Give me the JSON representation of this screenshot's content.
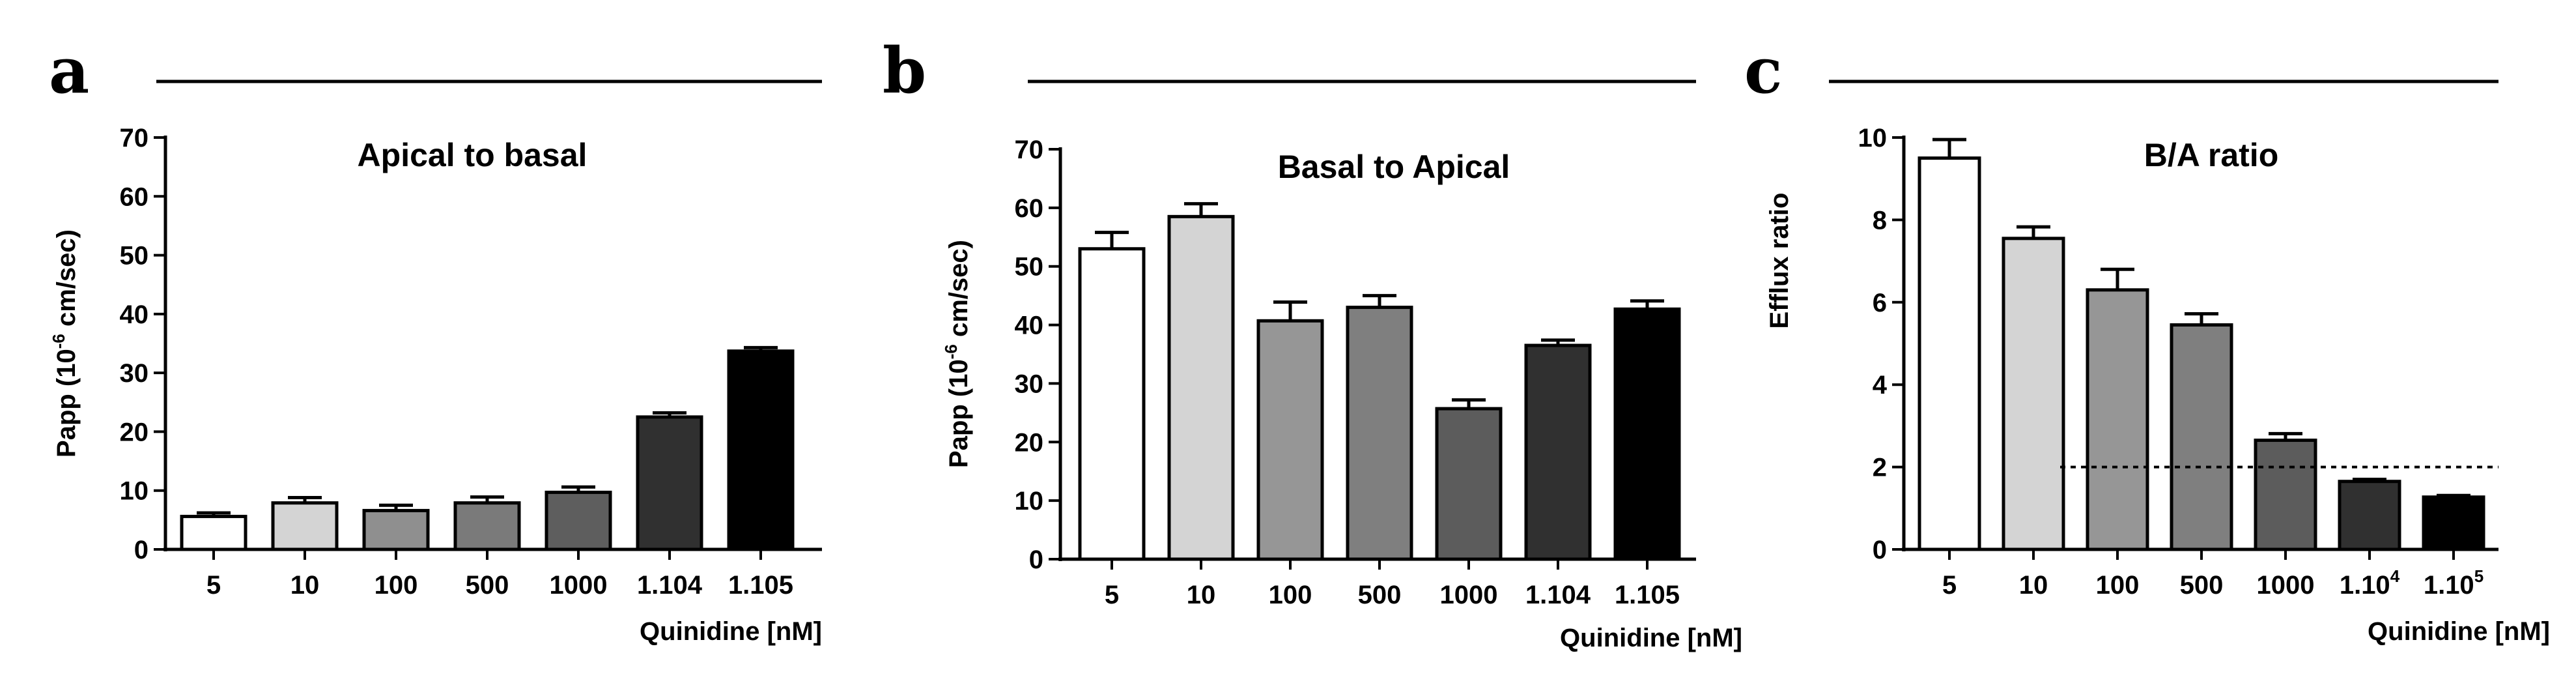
{
  "chart_data": [
    {
      "panel": "a",
      "type": "bar",
      "title": "Apical to basal",
      "ylabel": "Papp (10-6 cm/sec)",
      "ylabel_base": "Papp (10",
      "ylabel_exp": "-6",
      "ylabel_rest": " cm/sec)",
      "xlabel": "Quinidine [nM]",
      "ylim": [
        0,
        70
      ],
      "yticks": [
        "0",
        "10",
        "20",
        "30",
        "40",
        "50",
        "60",
        "70"
      ],
      "categories": [
        {
          "base": "5",
          "sup": ""
        },
        {
          "base": "10",
          "sup": ""
        },
        {
          "base": "100",
          "sup": ""
        },
        {
          "base": "500",
          "sup": ""
        },
        {
          "base": "1000",
          "sup": ""
        },
        {
          "base": "1.104",
          "sup": ""
        },
        {
          "base": "1.105",
          "sup": ""
        }
      ],
      "values": [
        5.6,
        7.9,
        6.6,
        7.9,
        9.7,
        22.5,
        33.7
      ],
      "errors": [
        0.6,
        0.9,
        0.9,
        1.0,
        0.9,
        0.7,
        0.6
      ],
      "colors": [
        "#ffffff",
        "#d4d4d4",
        "#8f8f8f",
        "#7a7a7a",
        "#5e5e5e",
        "#303030",
        "#000000"
      ],
      "reference_line": null
    },
    {
      "panel": "b",
      "type": "bar",
      "title": "Basal to Apical",
      "ylabel": "Papp (10-6 cm/sec)",
      "ylabel_base": "Papp (10",
      "ylabel_exp": "-6",
      "ylabel_rest": " cm/sec)",
      "xlabel": "Quinidine [nM]",
      "ylim": [
        0,
        70
      ],
      "yticks": [
        "0",
        "10",
        "20",
        "30",
        "40",
        "50",
        "60",
        "70"
      ],
      "categories": [
        {
          "base": "5",
          "sup": ""
        },
        {
          "base": "10",
          "sup": ""
        },
        {
          "base": "100",
          "sup": ""
        },
        {
          "base": "500",
          "sup": ""
        },
        {
          "base": "1000",
          "sup": ""
        },
        {
          "base": "1.104",
          "sup": ""
        },
        {
          "base": "1.105",
          "sup": ""
        }
      ],
      "values": [
        53.0,
        58.5,
        40.7,
        43.0,
        25.7,
        36.5,
        42.7
      ],
      "errors": [
        2.8,
        2.2,
        3.2,
        2.0,
        1.5,
        0.9,
        1.4
      ],
      "colors": [
        "#ffffff",
        "#d4d4d4",
        "#969696",
        "#7f7f7f",
        "#5c5c5c",
        "#303030",
        "#000000"
      ],
      "reference_line": null
    },
    {
      "panel": "c",
      "type": "bar",
      "title": "B/A ratio",
      "ylabel": "Efflux ratio",
      "ylabel_base": "Efflux ratio",
      "ylabel_exp": "",
      "ylabel_rest": "",
      "xlabel": "Quinidine [nM]",
      "ylim": [
        0,
        10
      ],
      "yticks": [
        "0",
        "2",
        "4",
        "6",
        "8",
        "10"
      ],
      "categories": [
        {
          "base": "5",
          "sup": ""
        },
        {
          "base": "10",
          "sup": ""
        },
        {
          "base": "100",
          "sup": ""
        },
        {
          "base": "500",
          "sup": ""
        },
        {
          "base": "1000",
          "sup": ""
        },
        {
          "base": "1.10",
          "sup": "4"
        },
        {
          "base": "1.10",
          "sup": "5"
        }
      ],
      "values": [
        9.5,
        7.55,
        6.3,
        5.45,
        2.65,
        1.65,
        1.27
      ],
      "errors": [
        0.45,
        0.28,
        0.5,
        0.27,
        0.16,
        0.05,
        0.04
      ],
      "colors": [
        "#ffffff",
        "#d4d4d4",
        "#969696",
        "#7f7f7f",
        "#5c5c5c",
        "#303030",
        "#000000"
      ],
      "reference_line": 2
    }
  ]
}
